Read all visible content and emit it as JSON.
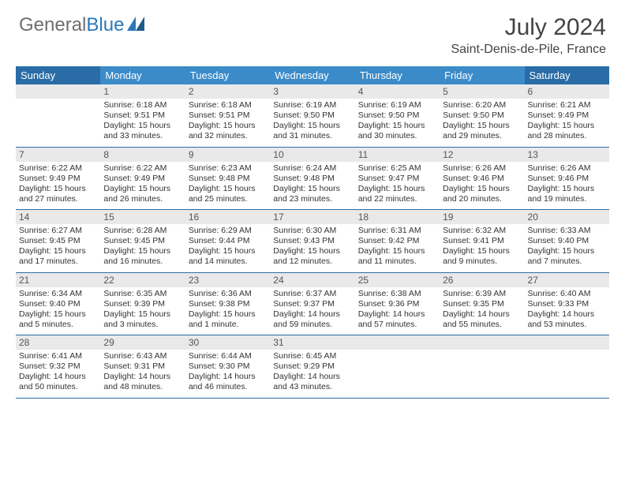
{
  "logo": {
    "part1": "General",
    "part2": "Blue"
  },
  "title": "July 2024",
  "location": "Saint-Denis-de-Pile, France",
  "colors": {
    "header_mid": "#3b8bc9",
    "header_end": "#2a6ca6",
    "row_divider": "#2a6ca6",
    "daynum_bg": "#e9e9e9",
    "text": "#333333",
    "logo_gray": "#6e6e6e",
    "logo_blue": "#2a79b8"
  },
  "day_labels": [
    "Sunday",
    "Monday",
    "Tuesday",
    "Wednesday",
    "Thursday",
    "Friday",
    "Saturday"
  ],
  "weeks": [
    [
      {
        "n": "",
        "sunrise": "",
        "sunset": "",
        "daylight": ""
      },
      {
        "n": "1",
        "sunrise": "Sunrise: 6:18 AM",
        "sunset": "Sunset: 9:51 PM",
        "daylight": "Daylight: 15 hours and 33 minutes."
      },
      {
        "n": "2",
        "sunrise": "Sunrise: 6:18 AM",
        "sunset": "Sunset: 9:51 PM",
        "daylight": "Daylight: 15 hours and 32 minutes."
      },
      {
        "n": "3",
        "sunrise": "Sunrise: 6:19 AM",
        "sunset": "Sunset: 9:50 PM",
        "daylight": "Daylight: 15 hours and 31 minutes."
      },
      {
        "n": "4",
        "sunrise": "Sunrise: 6:19 AM",
        "sunset": "Sunset: 9:50 PM",
        "daylight": "Daylight: 15 hours and 30 minutes."
      },
      {
        "n": "5",
        "sunrise": "Sunrise: 6:20 AM",
        "sunset": "Sunset: 9:50 PM",
        "daylight": "Daylight: 15 hours and 29 minutes."
      },
      {
        "n": "6",
        "sunrise": "Sunrise: 6:21 AM",
        "sunset": "Sunset: 9:49 PM",
        "daylight": "Daylight: 15 hours and 28 minutes."
      }
    ],
    [
      {
        "n": "7",
        "sunrise": "Sunrise: 6:22 AM",
        "sunset": "Sunset: 9:49 PM",
        "daylight": "Daylight: 15 hours and 27 minutes."
      },
      {
        "n": "8",
        "sunrise": "Sunrise: 6:22 AM",
        "sunset": "Sunset: 9:49 PM",
        "daylight": "Daylight: 15 hours and 26 minutes."
      },
      {
        "n": "9",
        "sunrise": "Sunrise: 6:23 AM",
        "sunset": "Sunset: 9:48 PM",
        "daylight": "Daylight: 15 hours and 25 minutes."
      },
      {
        "n": "10",
        "sunrise": "Sunrise: 6:24 AM",
        "sunset": "Sunset: 9:48 PM",
        "daylight": "Daylight: 15 hours and 23 minutes."
      },
      {
        "n": "11",
        "sunrise": "Sunrise: 6:25 AM",
        "sunset": "Sunset: 9:47 PM",
        "daylight": "Daylight: 15 hours and 22 minutes."
      },
      {
        "n": "12",
        "sunrise": "Sunrise: 6:26 AM",
        "sunset": "Sunset: 9:46 PM",
        "daylight": "Daylight: 15 hours and 20 minutes."
      },
      {
        "n": "13",
        "sunrise": "Sunrise: 6:26 AM",
        "sunset": "Sunset: 9:46 PM",
        "daylight": "Daylight: 15 hours and 19 minutes."
      }
    ],
    [
      {
        "n": "14",
        "sunrise": "Sunrise: 6:27 AM",
        "sunset": "Sunset: 9:45 PM",
        "daylight": "Daylight: 15 hours and 17 minutes."
      },
      {
        "n": "15",
        "sunrise": "Sunrise: 6:28 AM",
        "sunset": "Sunset: 9:45 PM",
        "daylight": "Daylight: 15 hours and 16 minutes."
      },
      {
        "n": "16",
        "sunrise": "Sunrise: 6:29 AM",
        "sunset": "Sunset: 9:44 PM",
        "daylight": "Daylight: 15 hours and 14 minutes."
      },
      {
        "n": "17",
        "sunrise": "Sunrise: 6:30 AM",
        "sunset": "Sunset: 9:43 PM",
        "daylight": "Daylight: 15 hours and 12 minutes."
      },
      {
        "n": "18",
        "sunrise": "Sunrise: 6:31 AM",
        "sunset": "Sunset: 9:42 PM",
        "daylight": "Daylight: 15 hours and 11 minutes."
      },
      {
        "n": "19",
        "sunrise": "Sunrise: 6:32 AM",
        "sunset": "Sunset: 9:41 PM",
        "daylight": "Daylight: 15 hours and 9 minutes."
      },
      {
        "n": "20",
        "sunrise": "Sunrise: 6:33 AM",
        "sunset": "Sunset: 9:40 PM",
        "daylight": "Daylight: 15 hours and 7 minutes."
      }
    ],
    [
      {
        "n": "21",
        "sunrise": "Sunrise: 6:34 AM",
        "sunset": "Sunset: 9:40 PM",
        "daylight": "Daylight: 15 hours and 5 minutes."
      },
      {
        "n": "22",
        "sunrise": "Sunrise: 6:35 AM",
        "sunset": "Sunset: 9:39 PM",
        "daylight": "Daylight: 15 hours and 3 minutes."
      },
      {
        "n": "23",
        "sunrise": "Sunrise: 6:36 AM",
        "sunset": "Sunset: 9:38 PM",
        "daylight": "Daylight: 15 hours and 1 minute."
      },
      {
        "n": "24",
        "sunrise": "Sunrise: 6:37 AM",
        "sunset": "Sunset: 9:37 PM",
        "daylight": "Daylight: 14 hours and 59 minutes."
      },
      {
        "n": "25",
        "sunrise": "Sunrise: 6:38 AM",
        "sunset": "Sunset: 9:36 PM",
        "daylight": "Daylight: 14 hours and 57 minutes."
      },
      {
        "n": "26",
        "sunrise": "Sunrise: 6:39 AM",
        "sunset": "Sunset: 9:35 PM",
        "daylight": "Daylight: 14 hours and 55 minutes."
      },
      {
        "n": "27",
        "sunrise": "Sunrise: 6:40 AM",
        "sunset": "Sunset: 9:33 PM",
        "daylight": "Daylight: 14 hours and 53 minutes."
      }
    ],
    [
      {
        "n": "28",
        "sunrise": "Sunrise: 6:41 AM",
        "sunset": "Sunset: 9:32 PM",
        "daylight": "Daylight: 14 hours and 50 minutes."
      },
      {
        "n": "29",
        "sunrise": "Sunrise: 6:43 AM",
        "sunset": "Sunset: 9:31 PM",
        "daylight": "Daylight: 14 hours and 48 minutes."
      },
      {
        "n": "30",
        "sunrise": "Sunrise: 6:44 AM",
        "sunset": "Sunset: 9:30 PM",
        "daylight": "Daylight: 14 hours and 46 minutes."
      },
      {
        "n": "31",
        "sunrise": "Sunrise: 6:45 AM",
        "sunset": "Sunset: 9:29 PM",
        "daylight": "Daylight: 14 hours and 43 minutes."
      },
      {
        "n": "",
        "sunrise": "",
        "sunset": "",
        "daylight": ""
      },
      {
        "n": "",
        "sunrise": "",
        "sunset": "",
        "daylight": ""
      },
      {
        "n": "",
        "sunrise": "",
        "sunset": "",
        "daylight": ""
      }
    ]
  ]
}
